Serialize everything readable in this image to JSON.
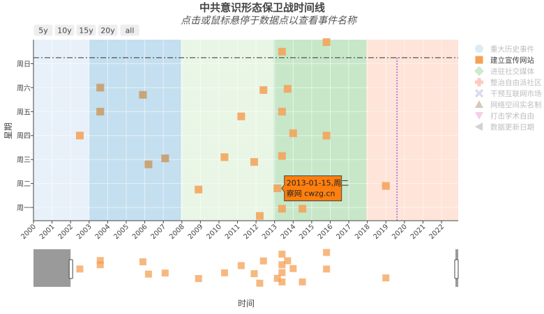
{
  "title": "中共意识形态保卫战时间线",
  "subtitle": "点击或鼠标悬停于数据点以查看事件名称",
  "range_buttons": [
    "5y",
    "10y",
    "15y",
    "20y",
    "all"
  ],
  "colors": {
    "period_1": "#c6dbef",
    "period_2": "#6baed6",
    "period_3": "#c7e9c0",
    "period_4": "#74c476",
    "period_5": "#fcbba1",
    "marker_orange": "#f4a055",
    "marker_tan": "#c99a62",
    "dashed_line": "#333333",
    "date_line": "#9c6ad6",
    "tooltip_bg": "#ff7f0e"
  },
  "tooltip": {
    "line1": "2013-01-15,周二",
    "line2": "察网 cwzg.cn"
  },
  "chart_data": {
    "type": "scatter",
    "title": "中共意识形态保卫战时间线",
    "subtitle": "点击或鼠标悬停于数据点以查看事件名称",
    "xlabel": "时间",
    "ylabel": "星期",
    "xlim": [
      2000.0,
      2022.9
    ],
    "x_ticks": [
      "2000",
      "2001",
      "2002",
      "2003",
      "2004",
      "2005",
      "2006",
      "2007",
      "2008",
      "2009",
      "2010",
      "2011",
      "2012",
      "2013",
      "2014",
      "2015",
      "2016",
      "2017",
      "2018",
      "2019",
      "2020",
      "2021",
      "2022"
    ],
    "y_categories": [
      "周一",
      "周二",
      "周三",
      "周四",
      "周五",
      "周六",
      "周日"
    ],
    "background_periods": [
      {
        "from": 2000.0,
        "to": 2003.0,
        "color_key": "period_1"
      },
      {
        "from": 2003.0,
        "to": 2007.95,
        "color_key": "period_2"
      },
      {
        "from": 2007.95,
        "to": 2012.95,
        "color_key": "period_3"
      },
      {
        "from": 2012.95,
        "to": 2017.95,
        "color_key": "period_4"
      },
      {
        "from": 2017.95,
        "to": 2022.9,
        "color_key": "period_5"
      }
    ],
    "reference_line_y": 7.25,
    "data_update_date": 2019.6,
    "legend": [
      {
        "label": "重大历史事件",
        "symbol": "circle",
        "color": "#9ecae1",
        "active": false
      },
      {
        "label": "建立宣传网站",
        "symbol": "square",
        "color": "#f4a055",
        "active": true
      },
      {
        "label": "进驻社交媒体",
        "symbol": "diamond",
        "color": "#74c476",
        "active": false
      },
      {
        "label": "整治自由派社区",
        "symbol": "cross",
        "color": "#fb6a4a",
        "active": false
      },
      {
        "label": "干预互联网市场",
        "symbol": "x",
        "color": "#9e9ac8",
        "active": false
      },
      {
        "label": "网络空间实名制",
        "symbol": "triangle-up",
        "color": "#8c6d31",
        "active": false
      },
      {
        "label": "打击学术自由",
        "symbol": "triangle-down",
        "color": "#e377c2",
        "active": false
      },
      {
        "label": "数据更新日期",
        "symbol": "triangle-left",
        "color": "#7f7f7f",
        "active": false
      }
    ],
    "series": [
      {
        "name": "建立宣传网站",
        "points": [
          {
            "x": 2002.5,
            "y": 4
          },
          {
            "x": 2003.6,
            "y": 6
          },
          {
            "x": 2003.6,
            "y": 5
          },
          {
            "x": 2005.9,
            "y": 5.7
          },
          {
            "x": 2006.2,
            "y": 2.8
          },
          {
            "x": 2007.1,
            "y": 3.05
          },
          {
            "x": 2008.9,
            "y": 1.75
          },
          {
            "x": 2010.3,
            "y": 3.1
          },
          {
            "x": 2011.2,
            "y": 4.8
          },
          {
            "x": 2011.9,
            "y": 2.9
          },
          {
            "x": 2012.2,
            "y": 0.65
          },
          {
            "x": 2012.4,
            "y": 5.9
          },
          {
            "x": 2013.15,
            "y": 1.8
          },
          {
            "x": 2013.4,
            "y": 7.5
          },
          {
            "x": 2013.4,
            "y": 5
          },
          {
            "x": 2013.4,
            "y": 3.15
          },
          {
            "x": 2013.4,
            "y": 0.95
          },
          {
            "x": 2013.7,
            "y": 5.95
          },
          {
            "x": 2014.0,
            "y": 4.1
          },
          {
            "x": 2014.5,
            "y": 0.95
          },
          {
            "x": 2015.8,
            "y": 7.9
          },
          {
            "x": 2015.8,
            "y": 4.0
          },
          {
            "x": 2019.0,
            "y": 1.9
          }
        ]
      }
    ]
  },
  "range_slider": {
    "selected_from": 2002.0,
    "selected_to": 2022.9
  },
  "x_axis_title": "时间",
  "y_axis_title": "星期"
}
